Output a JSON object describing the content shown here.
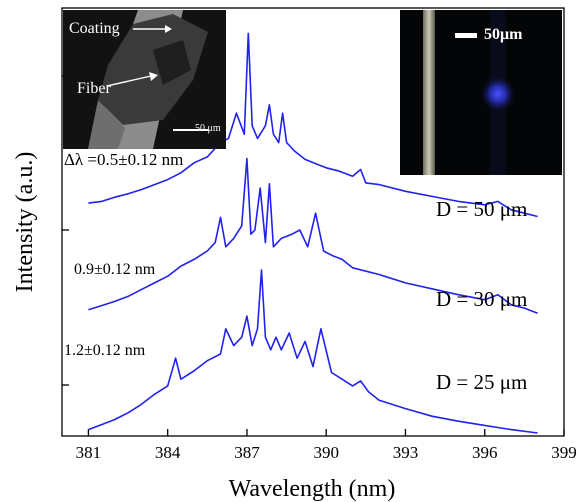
{
  "chart_data": {
    "type": "line",
    "xlabel": "Wavelength (nm)",
    "ylabel": "Intensity (a.u.)",
    "xlim": [
      380,
      399
    ],
    "xticks": [
      381,
      384,
      387,
      390,
      393,
      396,
      399
    ],
    "xtick_labels": [
      "381",
      "384",
      "387",
      "390",
      "393",
      "396",
      "399"
    ],
    "y_tick_count": 3,
    "line_color": "#2222ee",
    "grid": false,
    "series": [
      {
        "name": "D = 50 μm",
        "annotation": "Δλ =0.5±0.12 nm",
        "x": [
          381.0,
          381.5,
          382.0,
          382.5,
          383.0,
          383.5,
          384.0,
          384.5,
          385.0,
          385.5,
          386.0,
          386.3,
          386.6,
          386.9,
          387.05,
          387.2,
          387.4,
          387.7,
          387.85,
          388.0,
          388.2,
          388.35,
          388.5,
          388.8,
          389.2,
          389.6,
          390.0,
          390.5,
          391.0,
          391.3,
          391.5,
          392.0,
          393.0,
          394.0,
          395.0,
          396.0,
          396.5,
          397.0,
          397.5,
          398.0
        ],
        "y": [
          0.38,
          0.4,
          0.45,
          0.49,
          0.54,
          0.6,
          0.66,
          0.74,
          0.86,
          0.93,
          1.1,
          1.15,
          1.45,
          1.2,
          2.4,
          1.3,
          1.15,
          1.3,
          1.55,
          1.2,
          1.1,
          1.45,
          1.1,
          1.0,
          0.9,
          0.85,
          0.8,
          0.76,
          0.7,
          0.78,
          0.62,
          0.6,
          0.52,
          0.46,
          0.4,
          0.36,
          0.4,
          0.3,
          0.26,
          0.22
        ]
      },
      {
        "name": "D = 30 μm",
        "annotation": "0.9±0.12 nm",
        "x": [
          381.0,
          381.5,
          382.0,
          382.5,
          383.0,
          383.5,
          384.0,
          384.5,
          385.0,
          385.5,
          385.8,
          386.0,
          386.2,
          386.5,
          386.8,
          387.0,
          387.15,
          387.3,
          387.5,
          387.7,
          387.85,
          388.0,
          388.3,
          388.7,
          389.0,
          389.3,
          389.6,
          389.9,
          390.2,
          390.6,
          391.0,
          392.0,
          393.0,
          394.0,
          395.0,
          396.0,
          396.5,
          397.0,
          397.5,
          398.0
        ],
        "y": [
          0.3,
          0.35,
          0.4,
          0.46,
          0.54,
          0.62,
          0.7,
          0.82,
          0.9,
          1.0,
          1.1,
          1.4,
          1.05,
          1.15,
          1.3,
          2.1,
          1.2,
          1.25,
          1.75,
          1.1,
          1.8,
          1.05,
          1.15,
          1.2,
          1.25,
          1.05,
          1.45,
          1.0,
          0.95,
          0.9,
          0.8,
          0.72,
          0.62,
          0.55,
          0.48,
          0.42,
          0.48,
          0.36,
          0.32,
          0.26
        ]
      },
      {
        "name": "D = 25 μm",
        "annotation": "1.2±0.12 nm",
        "x": [
          381.0,
          381.5,
          382.0,
          382.5,
          383.0,
          383.5,
          384.0,
          384.3,
          384.5,
          385.0,
          385.5,
          386.0,
          386.2,
          386.5,
          386.8,
          387.0,
          387.2,
          387.4,
          387.55,
          387.7,
          387.9,
          388.1,
          388.3,
          388.6,
          388.9,
          389.2,
          389.5,
          389.8,
          390.2,
          390.6,
          391.0,
          391.3,
          391.6,
          392.0,
          393.0,
          394.0,
          395.0,
          396.0,
          397.0,
          398.0
        ],
        "y": [
          0.1,
          0.16,
          0.22,
          0.3,
          0.4,
          0.52,
          0.62,
          0.95,
          0.7,
          0.8,
          0.92,
          1.0,
          1.3,
          1.1,
          1.2,
          1.45,
          1.1,
          1.3,
          2.0,
          1.2,
          1.05,
          1.2,
          1.05,
          1.25,
          0.95,
          1.15,
          0.85,
          1.3,
          0.78,
          0.7,
          0.62,
          0.68,
          0.55,
          0.45,
          0.35,
          0.26,
          0.2,
          0.15,
          0.1,
          0.06
        ]
      }
    ],
    "annotations": [
      {
        "text": "Δλ =0.5±0.12 nm",
        "series": 0
      },
      {
        "text": "0.9±0.12 nm",
        "series": 1
      },
      {
        "text": "1.2±0.12 nm",
        "series": 2
      }
    ]
  },
  "insets": {
    "sem": {
      "labels": {
        "coating": "Coating",
        "fiber": "Fiber",
        "scale": "50 μm"
      }
    },
    "optical": {
      "labels": {
        "scale": "50μm"
      },
      "emission_color": "#2233ff"
    }
  }
}
